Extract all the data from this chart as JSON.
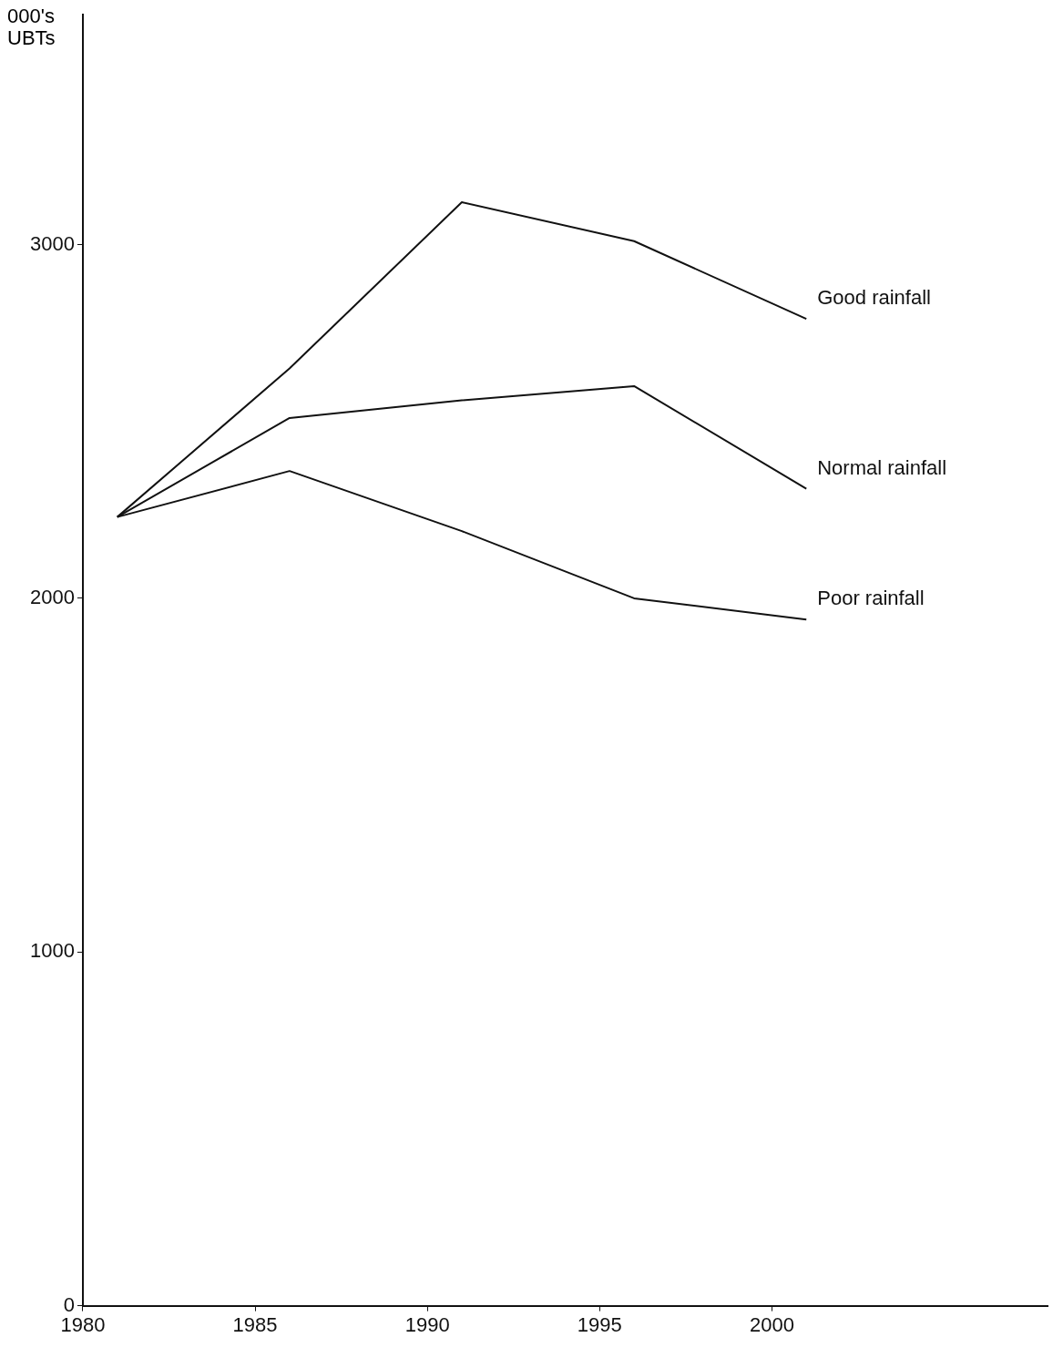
{
  "chart_data": {
    "type": "line",
    "ylabel": "000's UBTs",
    "x": [
      1981,
      1986,
      1991,
      1996,
      2001
    ],
    "series": [
      {
        "name": "Good rainfall",
        "color": "#111111",
        "values": [
          2230,
          2650,
          3120,
          3010,
          2790
        ]
      },
      {
        "name": "Normal rainfall",
        "color": "#111111",
        "values": [
          2230,
          2510,
          2560,
          2600,
          2310
        ]
      },
      {
        "name": "Poor rainfall",
        "color": "#111111",
        "values": [
          2230,
          2360,
          2190,
          2000,
          1940
        ]
      }
    ],
    "xlim": [
      1980,
      2008
    ],
    "xticks": [
      1980,
      1985,
      1990,
      1995,
      2000
    ],
    "ylim": [
      0,
      3650
    ],
    "yticks": [
      0,
      1000,
      2000,
      3000
    ],
    "grid": false,
    "legend": false,
    "marker": "none",
    "line_style": "solid"
  }
}
